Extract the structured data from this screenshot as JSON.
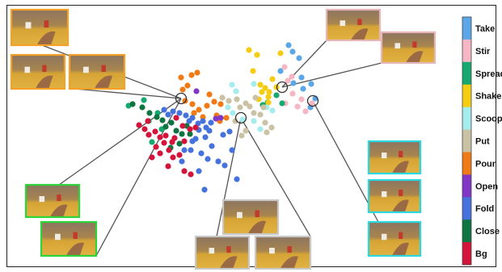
{
  "chart_data": {
    "type": "scatter",
    "title": "",
    "xlabel": "",
    "ylabel": "",
    "grid": false,
    "legend": {
      "placement": "right",
      "style": "colorbar",
      "entries": [
        {
          "name": "Take",
          "color": "#5aa6e6"
        },
        {
          "name": "Stir",
          "color": "#f6b6c4"
        },
        {
          "name": "Spread",
          "color": "#16a86e"
        },
        {
          "name": "Shake",
          "color": "#f4cc14"
        },
        {
          "name": "Scoop",
          "color": "#a5ecec"
        },
        {
          "name": "Put",
          "color": "#cbc2a6"
        },
        {
          "name": "Pour",
          "color": "#f07a16"
        },
        {
          "name": "Open",
          "color": "#8236c6"
        },
        {
          "name": "Fold",
          "color": "#4572dc"
        },
        {
          "name": "Close",
          "color": "#0e7440"
        },
        {
          "name": "Bg",
          "color": "#d4143a"
        }
      ]
    },
    "series": [
      {
        "name": "Take",
        "points": [
          [
            357,
            56
          ],
          [
            370,
            72
          ],
          [
            373,
            96
          ],
          [
            363,
            103
          ],
          [
            375,
            110
          ],
          [
            385,
            104
          ],
          [
            347,
            88
          ],
          [
            362,
            64
          ],
          [
            390,
            122
          ],
          [
            384,
            133
          ]
        ]
      },
      {
        "name": "Stir",
        "points": [
          [
            352,
            83
          ],
          [
            356,
            100
          ],
          [
            362,
            116
          ],
          [
            353,
            128
          ],
          [
            373,
            123
          ],
          [
            386,
            128
          ],
          [
            368,
            132
          ],
          [
            378,
            138
          ],
          [
            361,
            95
          ]
        ]
      },
      {
        "name": "Spread",
        "points": [
          [
            159,
            131
          ],
          [
            178,
            124
          ],
          [
            195,
            140
          ],
          [
            184,
            150
          ],
          [
            188,
            176
          ],
          [
            342,
            118
          ],
          [
            349,
            128
          ],
          [
            200,
            160
          ],
          [
            331,
            127
          ],
          [
            325,
            130
          ]
        ]
      },
      {
        "name": "Shake",
        "points": [
          [
            308,
            62
          ],
          [
            318,
            68
          ],
          [
            313,
            88
          ],
          [
            322,
            105
          ],
          [
            328,
            109
          ],
          [
            342,
            108
          ],
          [
            337,
            98
          ],
          [
            332,
            120
          ],
          [
            320,
            123
          ],
          [
            347,
            66
          ],
          [
            333,
            114
          ],
          [
            324,
            114
          ],
          [
            332,
            127
          ]
        ]
      },
      {
        "name": "Scoop",
        "points": [
          [
            287,
            105
          ],
          [
            292,
            113
          ],
          [
            314,
            104
          ],
          [
            330,
            133
          ],
          [
            322,
            160
          ],
          [
            314,
            150
          ],
          [
            300,
            148
          ],
          [
            282,
            133
          ],
          [
            337,
            137
          ],
          [
            288,
            140
          ]
        ]
      },
      {
        "name": "Put",
        "points": [
          [
            275,
            121
          ],
          [
            283,
            125
          ],
          [
            293,
            123
          ],
          [
            297,
            133
          ],
          [
            309,
            132
          ],
          [
            316,
            121
          ],
          [
            314,
            140
          ],
          [
            304,
            128
          ],
          [
            322,
            142
          ],
          [
            326,
            133
          ],
          [
            328,
            152
          ],
          [
            336,
            158
          ],
          [
            330,
            164
          ],
          [
            304,
            162
          ],
          [
            299,
            168
          ],
          [
            291,
            150
          ]
        ]
      },
      {
        "name": "Pour",
        "points": [
          [
            244,
            90
          ],
          [
            237,
            93
          ],
          [
            232,
            106
          ],
          [
            226,
            111
          ],
          [
            229,
            125
          ],
          [
            238,
            129
          ],
          [
            240,
            140
          ],
          [
            246,
            136
          ],
          [
            251,
            145
          ],
          [
            256,
            131
          ],
          [
            265,
            126
          ],
          [
            268,
            143
          ],
          [
            272,
            150
          ],
          [
            280,
            146
          ],
          [
            273,
            129
          ],
          [
            259,
            117
          ],
          [
            224,
            96
          ]
        ]
      },
      {
        "name": "Open",
        "points": [
          [
            243,
            113
          ],
          [
            267,
            147
          ],
          [
            273,
            146
          ]
        ]
      },
      {
        "name": "Fold",
        "points": [
          [
            203,
            136
          ],
          [
            208,
            142
          ],
          [
            214,
            138
          ],
          [
            222,
            140
          ],
          [
            230,
            143
          ],
          [
            234,
            150
          ],
          [
            238,
            146
          ],
          [
            245,
            153
          ],
          [
            251,
            150
          ],
          [
            255,
            158
          ],
          [
            261,
            152
          ],
          [
            254,
            170
          ],
          [
            242,
            172
          ],
          [
            236,
            186
          ],
          [
            249,
            190
          ],
          [
            257,
            197
          ],
          [
            262,
            181
          ],
          [
            270,
            200
          ],
          [
            278,
            205
          ],
          [
            287,
            186
          ],
          [
            293,
            222
          ],
          [
            253,
            235
          ],
          [
            246,
            212
          ],
          [
            238,
            175
          ],
          [
            228,
            186
          ],
          [
            225,
            200
          ],
          [
            284,
            163
          ],
          [
            276,
            167
          ],
          [
            259,
            162
          ],
          [
            246,
            161
          ]
        ]
      },
      {
        "name": "Close",
        "points": [
          [
            164,
            129
          ],
          [
            176,
            133
          ],
          [
            185,
            140
          ],
          [
            194,
            145
          ],
          [
            201,
            149
          ],
          [
            205,
            157
          ],
          [
            212,
            152
          ],
          [
            218,
            162
          ],
          [
            225,
            166
          ],
          [
            231,
            156
          ],
          [
            222,
            178
          ],
          [
            211,
            183
          ],
          [
            235,
            166
          ]
        ]
      },
      {
        "name": "Bg",
        "points": [
          [
            172,
            155
          ],
          [
            179,
            160
          ],
          [
            184,
            167
          ],
          [
            192,
            163
          ],
          [
            198,
            170
          ],
          [
            203,
            177
          ],
          [
            209,
            186
          ],
          [
            198,
            190
          ],
          [
            214,
            195
          ],
          [
            222,
            192
          ],
          [
            228,
            175
          ],
          [
            235,
            160
          ],
          [
            226,
            156
          ],
          [
            218,
            146
          ],
          [
            208,
            206
          ],
          [
            228,
            212
          ],
          [
            236,
            216
          ],
          [
            188,
            195
          ],
          [
            193,
            182
          ],
          [
            205,
            168
          ],
          [
            216,
            171
          ],
          [
            242,
            158
          ],
          [
            213,
            176
          ],
          [
            183,
            150
          ]
        ]
      }
    ],
    "annotations": {
      "circles": [
        {
          "x": 224,
          "y": 122
        },
        {
          "x": 298,
          "y": 146
        },
        {
          "x": 349,
          "y": 108
        },
        {
          "x": 387,
          "y": 125
        }
      ],
      "thumbnail_groups": [
        {
          "border_color": "#f5a026",
          "count": 3
        },
        {
          "border_color": "#2cd63a",
          "count": 2
        },
        {
          "border_color": "#c8c8c8",
          "count": 3
        },
        {
          "border_color": "#e8b6b8",
          "count": 2
        },
        {
          "border_color": "#2ad8e0",
          "count": 3
        }
      ]
    }
  }
}
